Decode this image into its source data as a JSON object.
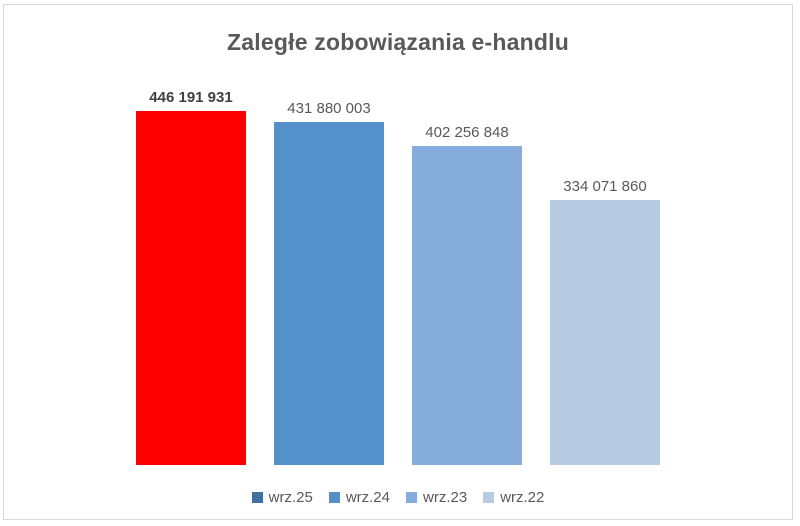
{
  "chart_data": {
    "type": "bar",
    "title": "Zaległe zobowiązania e-handlu",
    "categories": [
      "wrz.25",
      "wrz.24",
      "wrz.23",
      "wrz.22"
    ],
    "values": [
      446191931,
      431880003,
      402256848,
      334071860
    ],
    "data_labels": [
      "446 191 931",
      "431 880 003",
      "402 256 848",
      "334 071 860"
    ],
    "bar_colors": [
      "#FF0000",
      "#5491CB",
      "#85ACDB",
      "#B8CBE4"
    ],
    "legend_colors": [
      "#41719C",
      "#5491CB",
      "#85ACDB",
      "#B8CBE4"
    ],
    "bold_label_index": 0,
    "xlabel": "",
    "ylabel": "",
    "ylim": [
      0,
      460000000
    ],
    "grid": false,
    "axis_lines": false,
    "legend_position": "bottom",
    "title_color": "#595959",
    "label_color": "#595959",
    "bold_label_color": "#404040"
  }
}
